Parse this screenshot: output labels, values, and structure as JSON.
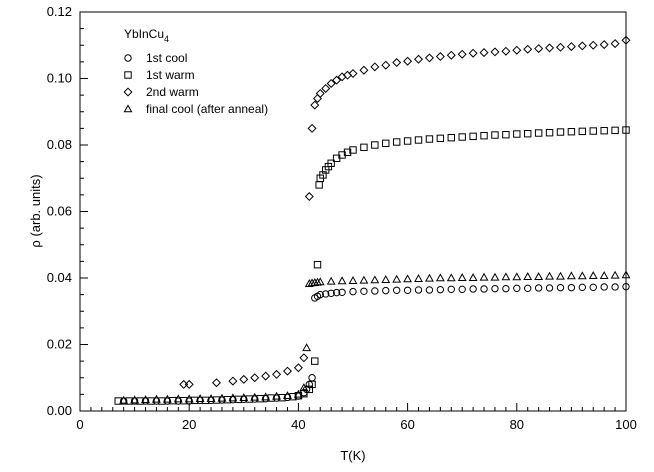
{
  "chart_data": {
    "type": "scatter",
    "title": "",
    "sample_label": "YbInCu",
    "sample_subscript": "4",
    "xlabel": "T(K)",
    "ylabel": "ρ (arb. units)",
    "xlim": [
      0,
      100
    ],
    "ylim": [
      0,
      0.12
    ],
    "xticks": [
      0,
      20,
      40,
      60,
      80,
      100
    ],
    "xtick_labels": [
      "0",
      "20",
      "40",
      "60",
      "80",
      "100"
    ],
    "yticks": [
      0.0,
      0.02,
      0.04,
      0.06,
      0.08,
      0.1,
      0.12
    ],
    "ytick_labels": [
      "0.00",
      "0.02",
      "0.04",
      "0.06",
      "0.08",
      "0.10",
      "0.12"
    ],
    "grid": false,
    "legend_position": "top-left",
    "series": [
      {
        "name": "1st cool",
        "marker": "circle",
        "x": [
          8,
          10,
          12,
          14,
          16,
          18,
          20,
          22,
          24,
          26,
          28,
          30,
          32,
          34,
          36,
          38,
          40,
          41,
          41.5,
          42,
          42.5,
          43,
          43.5,
          44,
          45,
          46,
          47,
          48,
          50,
          52,
          54,
          56,
          58,
          60,
          62,
          64,
          66,
          68,
          70,
          72,
          74,
          76,
          78,
          80,
          82,
          84,
          86,
          88,
          90,
          92,
          94,
          96,
          98,
          100
        ],
        "y": [
          0.003,
          0.003,
          0.003,
          0.003,
          0.003,
          0.003,
          0.003,
          0.0032,
          0.0032,
          0.0033,
          0.0034,
          0.0035,
          0.0036,
          0.0037,
          0.0039,
          0.0041,
          0.0045,
          0.0055,
          0.0065,
          0.008,
          0.01,
          0.034,
          0.0345,
          0.035,
          0.0352,
          0.0354,
          0.0356,
          0.0357,
          0.0359,
          0.036,
          0.0361,
          0.0362,
          0.0363,
          0.0363,
          0.0364,
          0.0364,
          0.0365,
          0.0366,
          0.0366,
          0.0367,
          0.0367,
          0.0368,
          0.0368,
          0.0369,
          0.0369,
          0.037,
          0.037,
          0.0371,
          0.0371,
          0.0372,
          0.0372,
          0.0373,
          0.0373,
          0.0374
        ]
      },
      {
        "name": "1st warm",
        "marker": "square",
        "x": [
          7,
          9,
          11,
          13,
          15,
          17,
          19,
          21,
          23,
          25,
          27,
          29,
          31,
          33,
          35,
          37,
          39,
          40,
          41,
          42,
          42.5,
          43,
          43.5,
          43.8,
          44,
          44.5,
          45,
          45.5,
          46,
          47,
          48,
          49,
          50,
          52,
          54,
          56,
          58,
          60,
          62,
          64,
          66,
          68,
          70,
          72,
          74,
          76,
          78,
          80,
          82,
          84,
          86,
          88,
          90,
          92,
          94,
          96,
          98,
          100
        ],
        "y": [
          0.003,
          0.003,
          0.003,
          0.003,
          0.003,
          0.0031,
          0.0031,
          0.0032,
          0.0032,
          0.0033,
          0.0034,
          0.0035,
          0.0036,
          0.0037,
          0.0039,
          0.004,
          0.0043,
          0.0046,
          0.0052,
          0.0065,
          0.008,
          0.015,
          0.044,
          0.068,
          0.07,
          0.071,
          0.0725,
          0.0735,
          0.0745,
          0.076,
          0.077,
          0.0778,
          0.0785,
          0.0793,
          0.08,
          0.0805,
          0.0809,
          0.0812,
          0.0815,
          0.0818,
          0.082,
          0.0822,
          0.0824,
          0.0826,
          0.0828,
          0.083,
          0.0831,
          0.0833,
          0.0834,
          0.0836,
          0.0837,
          0.0839,
          0.084,
          0.0841,
          0.0842,
          0.0843,
          0.0844,
          0.0845
        ]
      },
      {
        "name": "2nd warm",
        "marker": "diamond",
        "x": [
          19,
          20,
          25,
          28,
          30,
          32,
          34,
          36,
          38,
          40,
          41,
          42,
          42.5,
          43,
          43.5,
          44,
          45,
          46,
          47,
          48,
          49,
          50,
          52,
          54,
          56,
          58,
          60,
          62,
          64,
          66,
          68,
          70,
          72,
          74,
          76,
          78,
          80,
          82,
          84,
          86,
          88,
          90,
          92,
          94,
          96,
          98,
          100
        ],
        "y": [
          0.008,
          0.008,
          0.0085,
          0.009,
          0.0095,
          0.01,
          0.0105,
          0.011,
          0.012,
          0.013,
          0.016,
          0.0645,
          0.085,
          0.092,
          0.094,
          0.0955,
          0.097,
          0.0985,
          0.0995,
          0.1005,
          0.101,
          0.1015,
          0.1025,
          0.1035,
          0.104,
          0.1048,
          0.1052,
          0.1058,
          0.1062,
          0.1066,
          0.107,
          0.1073,
          0.1076,
          0.1078,
          0.108,
          0.1082,
          0.1085,
          0.1088,
          0.109,
          0.1092,
          0.1094,
          0.1096,
          0.1098,
          0.11,
          0.1102,
          0.1105,
          0.1115
        ]
      },
      {
        "name": "final cool (after anneal)",
        "marker": "triangle",
        "x": [
          8,
          10,
          12,
          14,
          16,
          18,
          20,
          22,
          24,
          26,
          28,
          30,
          32,
          34,
          36,
          38,
          40,
          41,
          41.5,
          42,
          42.5,
          43,
          43.5,
          44,
          46,
          48,
          50,
          52,
          54,
          56,
          58,
          60,
          62,
          64,
          66,
          68,
          70,
          72,
          74,
          76,
          78,
          80,
          82,
          84,
          86,
          88,
          90,
          92,
          94,
          96,
          98,
          100
        ],
        "y": [
          0.0032,
          0.0033,
          0.0034,
          0.0035,
          0.0035,
          0.0036,
          0.0036,
          0.0037,
          0.0037,
          0.0038,
          0.0039,
          0.004,
          0.0041,
          0.0042,
          0.0044,
          0.0046,
          0.005,
          0.007,
          0.019,
          0.0383,
          0.0385,
          0.0386,
          0.0387,
          0.0388,
          0.039,
          0.0391,
          0.0392,
          0.0393,
          0.0394,
          0.0395,
          0.0396,
          0.0397,
          0.0398,
          0.0399,
          0.04,
          0.04,
          0.0401,
          0.0401,
          0.0402,
          0.0402,
          0.0403,
          0.0403,
          0.0404,
          0.0404,
          0.0405,
          0.0405,
          0.0406,
          0.0406,
          0.0407,
          0.0407,
          0.0408,
          0.0409
        ]
      }
    ]
  }
}
